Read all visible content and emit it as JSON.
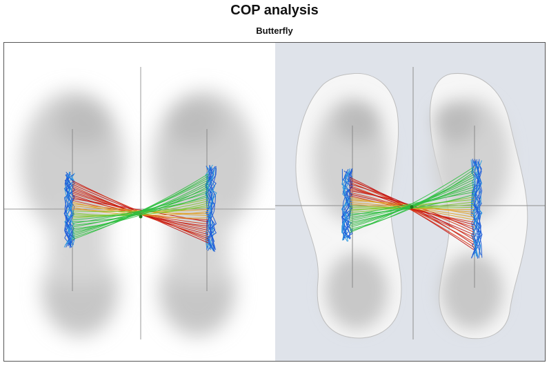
{
  "title": "COP analysis",
  "subtitle": "Butterfly",
  "colors": {
    "right_panel_bg": "#dfe3ea",
    "trace_colors": [
      "#1f5ed8",
      "#2f9be0",
      "#2fbf40",
      "#7ec82a",
      "#e0a020",
      "#d83010",
      "#c01010"
    ]
  },
  "panels": [
    {
      "id": "pressure-map-plain",
      "background": "white"
    },
    {
      "id": "pressure-map-outlined",
      "background": "light-blue-grey"
    }
  ]
}
